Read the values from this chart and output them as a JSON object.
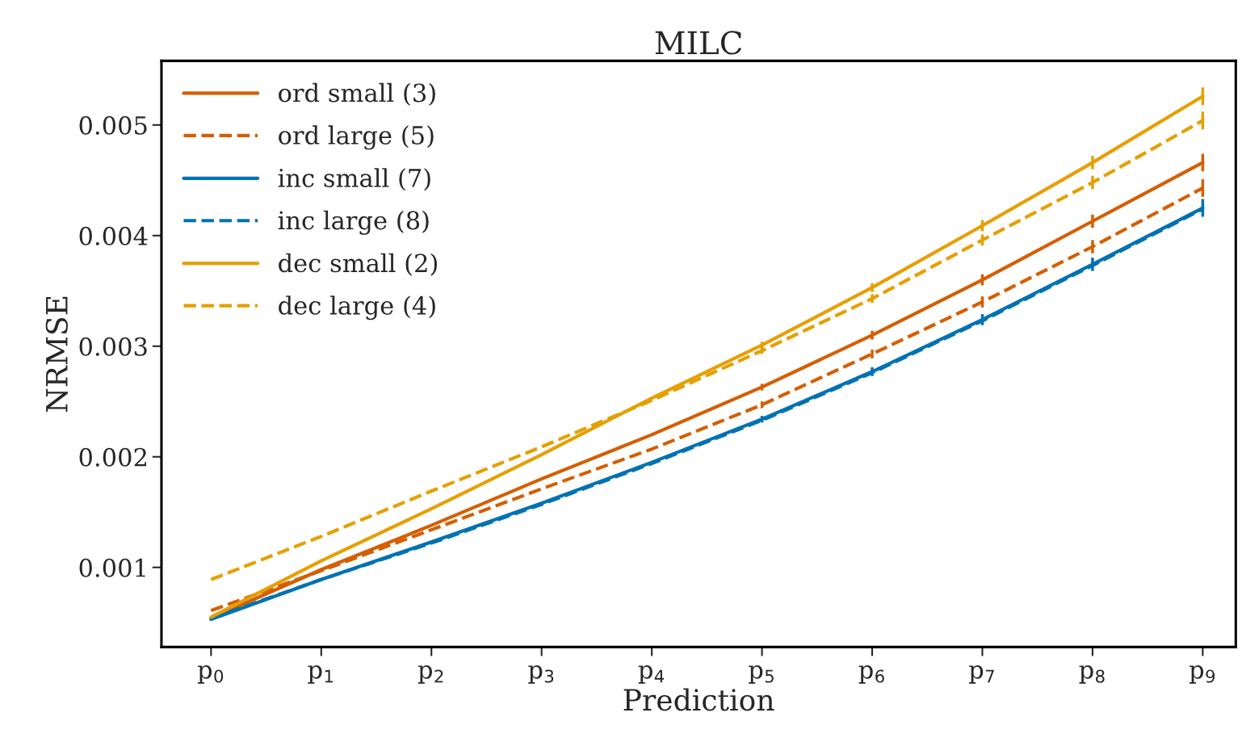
{
  "chart_data": {
    "type": "line",
    "title": "MILC",
    "xlabel": "Prediction",
    "ylabel": "NRMSE",
    "categories": [
      "p$_{0}$",
      "p$_{1}$",
      "p$_{2}$",
      "p$_{3}$",
      "p$_{4}$",
      "p$_{5}$",
      "p$_{6}$",
      "p$_{7}$",
      "p$_{8}$",
      "p$_{9}$"
    ],
    "ylim": [
      0.00028,
      0.00558
    ],
    "yticks": [
      0.001,
      0.002,
      0.003,
      0.004,
      0.005
    ],
    "grid": false,
    "legend": "top left",
    "marker": "none",
    "series": [
      {
        "name": "ord small (3)",
        "color": "#d55e00",
        "line_style": "solid",
        "values": [
          0.00054,
          0.00098,
          0.00138,
          0.0018,
          0.0022,
          0.00263,
          0.0031,
          0.0036,
          0.00413,
          0.00466
        ],
        "errors": [
          null,
          null,
          null,
          null,
          null,
          3e-05,
          4e-05,
          5e-05,
          6e-05,
          8e-05
        ]
      },
      {
        "name": "ord large (5)",
        "color": "#d55e00",
        "line_style": "dashed",
        "values": [
          0.00061,
          0.00097,
          0.00134,
          0.00171,
          0.00207,
          0.00247,
          0.00293,
          0.0034,
          0.0039,
          0.00443
        ],
        "errors": [
          null,
          null,
          null,
          null,
          null,
          3e-05,
          4e-05,
          5e-05,
          6e-05,
          8e-05
        ]
      },
      {
        "name": "inc small (7)",
        "color": "#0072b2",
        "line_style": "solid",
        "values": [
          0.00053,
          0.00089,
          0.00123,
          0.00158,
          0.00195,
          0.00234,
          0.00277,
          0.00324,
          0.00374,
          0.00425
        ],
        "errors": [
          null,
          null,
          null,
          null,
          null,
          3e-05,
          4e-05,
          5e-05,
          6e-05,
          8e-05
        ]
      },
      {
        "name": "inc large (8)",
        "color": "#0072b2",
        "line_style": "dashed",
        "values": [
          0.00054,
          0.00089,
          0.00122,
          0.00157,
          0.00194,
          0.00233,
          0.00276,
          0.00323,
          0.00373,
          0.00424
        ]
      },
      {
        "name": "dec small (2)",
        "color": "#e69f00",
        "line_style": "solid",
        "values": [
          0.00055,
          0.00106,
          0.00153,
          0.00202,
          0.00253,
          0.00301,
          0.00353,
          0.00409,
          0.00466,
          0.00526
        ],
        "errors": [
          null,
          null,
          null,
          null,
          null,
          3e-05,
          4e-05,
          5e-05,
          6e-05,
          8e-05
        ]
      },
      {
        "name": "dec large (4)",
        "color": "#e69f00",
        "line_style": "dashed",
        "values": [
          0.00089,
          0.00128,
          0.00169,
          0.00209,
          0.00251,
          0.00296,
          0.00343,
          0.00396,
          0.00448,
          0.00504
        ],
        "errors": [
          null,
          null,
          null,
          null,
          null,
          3e-05,
          4e-05,
          5e-05,
          6e-05,
          8e-05
        ]
      }
    ]
  }
}
